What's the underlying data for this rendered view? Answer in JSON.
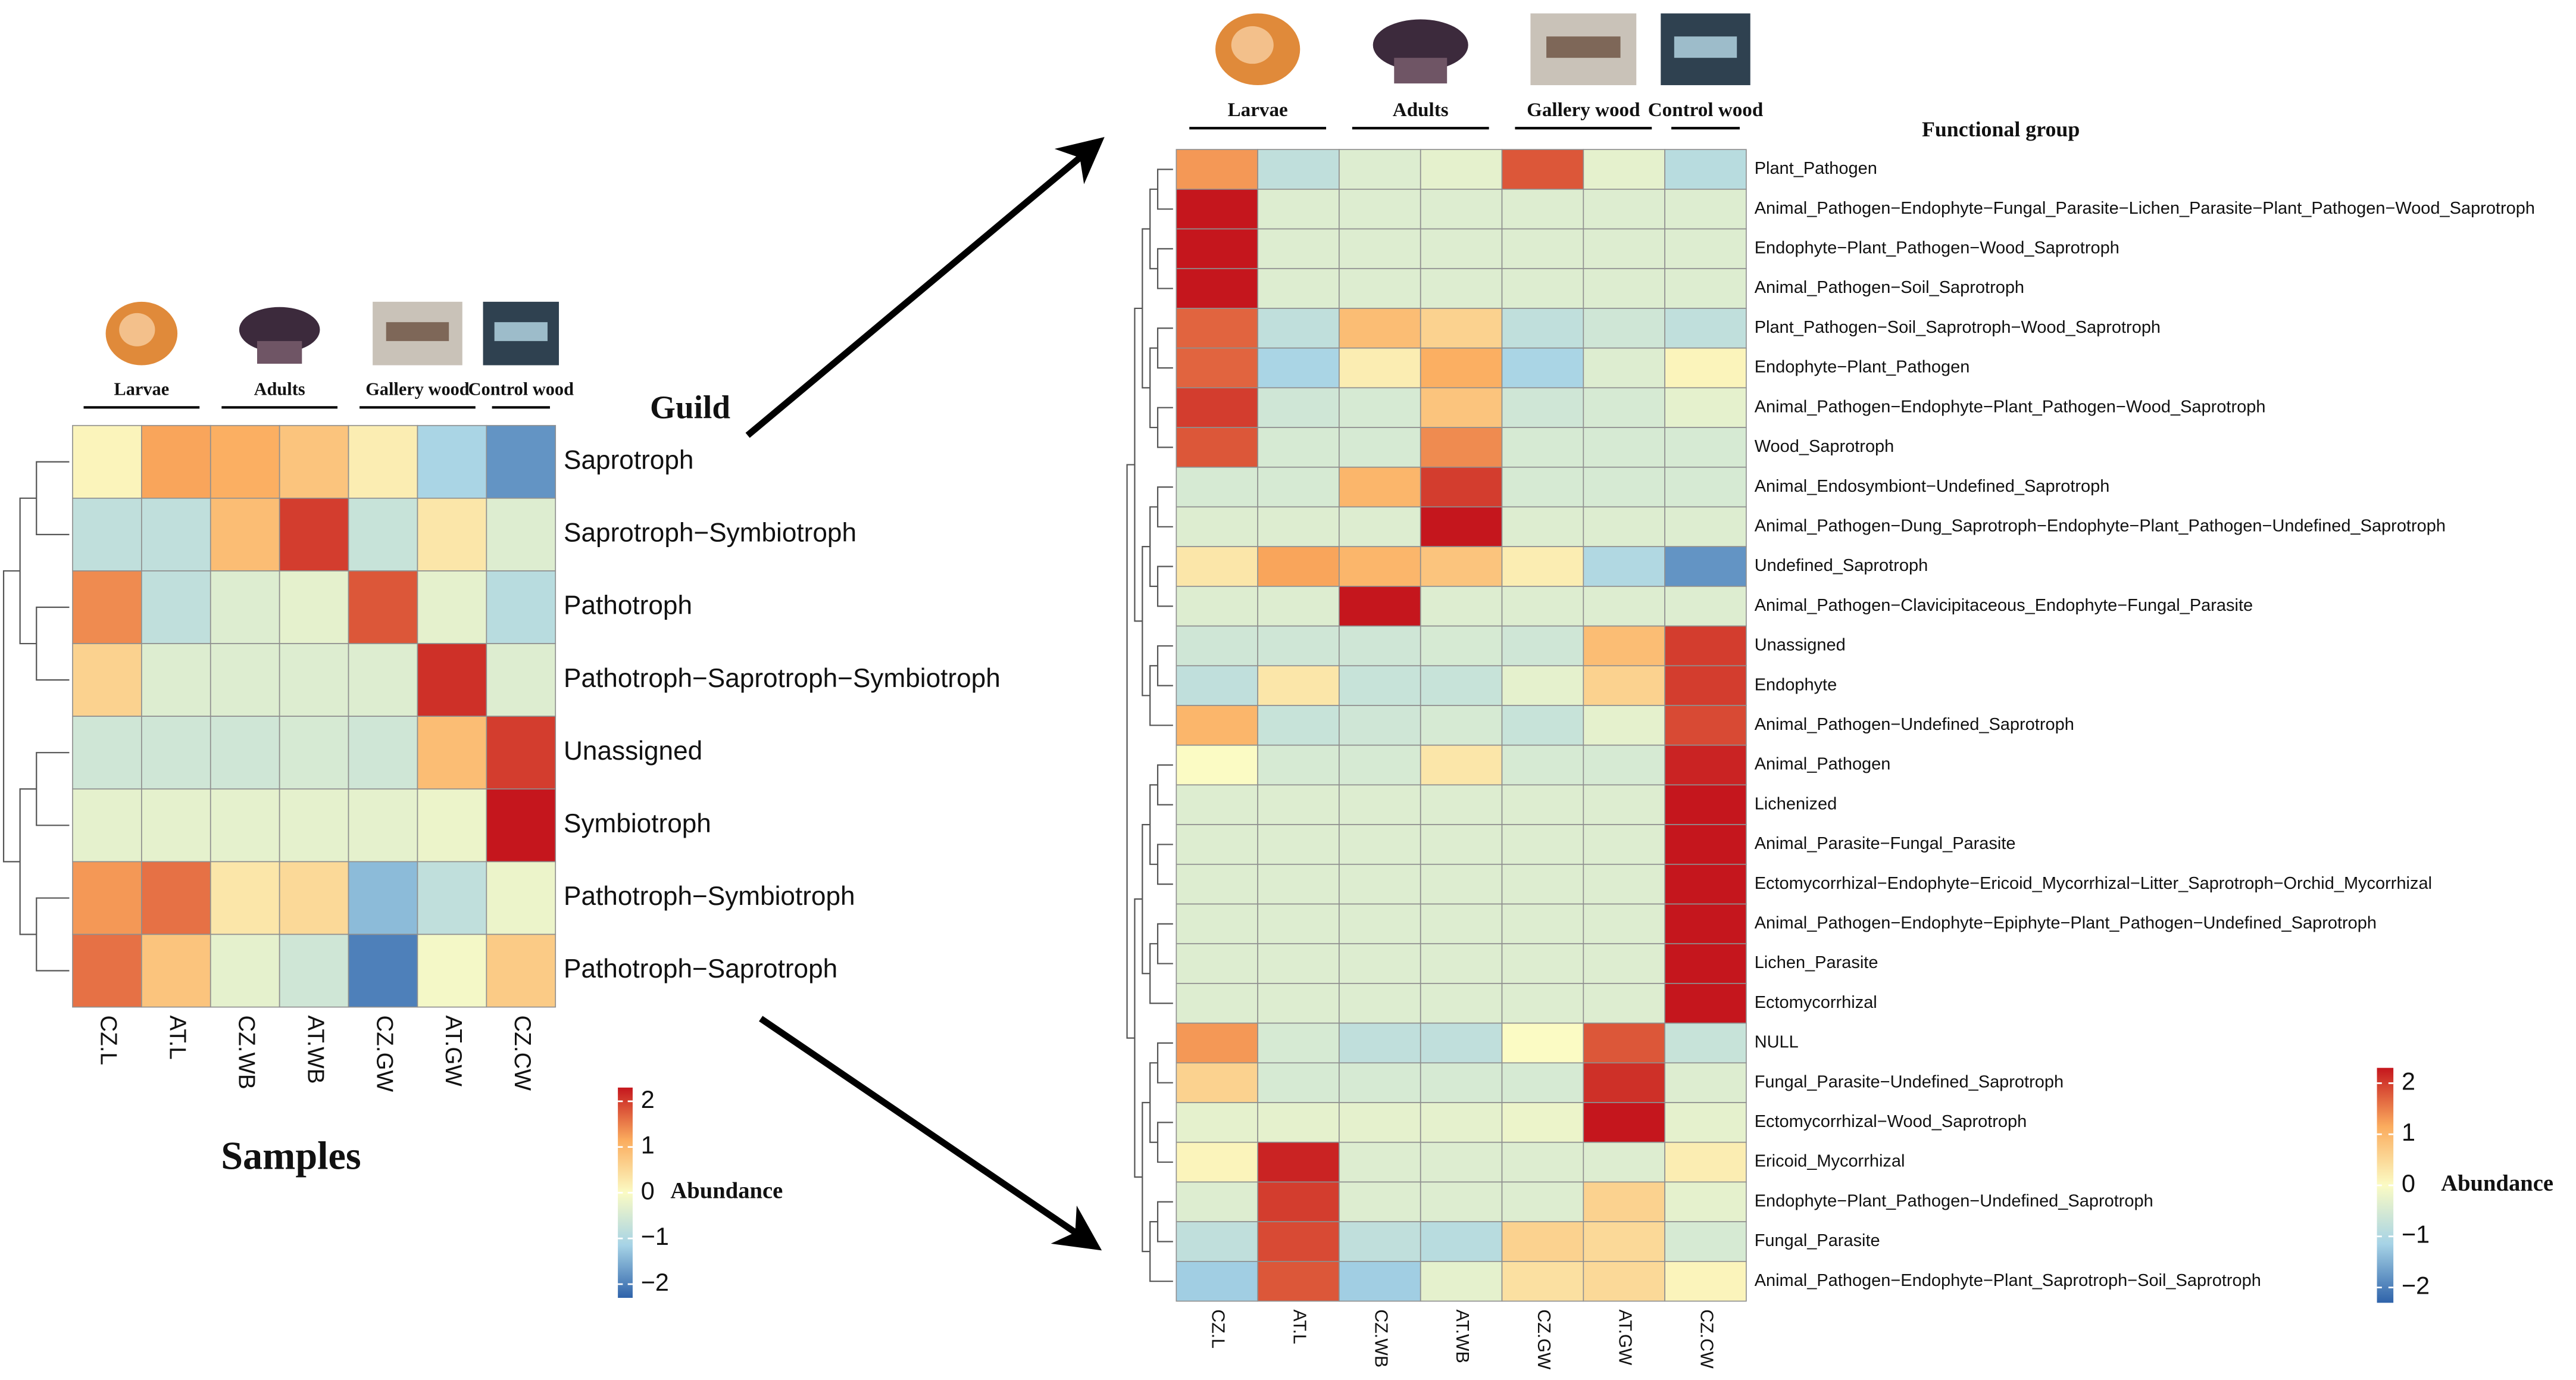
{
  "chart_data": [
    {
      "type": "heatmap",
      "title": "Guild",
      "xlabel": "Samples",
      "groups": [
        "Larvae",
        "Adults",
        "Gallery wood",
        "Control wood"
      ],
      "columns": [
        "CZ.L",
        "AT.L",
        "CZ.WB",
        "AT.WB",
        "CZ.GW",
        "AT.GW",
        "CZ.CW"
      ],
      "rows": [
        "Saprotroph",
        "Saprotroph−Symbiotroph",
        "Pathotroph",
        "Pathotroph−Saprotroph−Symbiotroph",
        "Unassigned",
        "Symbiotroph",
        "Pathotroph−Symbiotroph",
        "Pathotroph−Saprotroph"
      ],
      "values": [
        [
          0.1,
          1.2,
          1.1,
          0.8,
          0.2,
          -1.1,
          -1.8
        ],
        [
          -0.8,
          -0.8,
          0.9,
          2.0,
          -0.7,
          0.3,
          -0.4
        ],
        [
          1.4,
          -0.8,
          -0.4,
          -0.3,
          1.8,
          -0.3,
          -0.9
        ],
        [
          0.6,
          -0.4,
          -0.4,
          -0.4,
          -0.4,
          2.1,
          -0.4
        ],
        [
          -0.6,
          -0.6,
          -0.6,
          -0.5,
          -0.6,
          0.9,
          2.0
        ],
        [
          -0.3,
          -0.3,
          -0.3,
          -0.3,
          -0.3,
          -0.2,
          2.3
        ],
        [
          1.3,
          1.6,
          0.3,
          0.5,
          -1.4,
          -0.8,
          -0.2
        ],
        [
          1.6,
          0.8,
          -0.3,
          -0.6,
          -2.0,
          -0.1,
          0.7
        ]
      ],
      "clim": [
        -2.3,
        2.3
      ],
      "colorscale": [
        "#2f63aa",
        "#a6d3e6",
        "#fbfbc4",
        "#fbac5e",
        "#c5161d"
      ],
      "colorbar_label": "Abundance",
      "colorbar_ticks": [
        {
          "value": -2,
          "label": "−2"
        },
        {
          "value": -1,
          "label": "−1"
        },
        0,
        1,
        2
      ]
    },
    {
      "type": "heatmap",
      "title": "Functional group",
      "groups": [
        "Larvae",
        "Adults",
        "Gallery wood",
        "Control wood"
      ],
      "columns": [
        "CZ.L",
        "AT.L",
        "CZ.WB",
        "AT.WB",
        "CZ.GW",
        "AT.GW",
        "CZ.CW"
      ],
      "rows": [
        "Plant_Pathogen",
        "Animal_Pathogen−Endophyte−Fungal_Parasite−Lichen_Parasite−Plant_Pathogen−Wood_Saprotroph",
        "Endophyte−Plant_Pathogen−Wood_Saprotroph",
        "Animal_Pathogen−Soil_Saprotroph",
        "Plant_Pathogen−Soil_Saprotroph−Wood_Saprotroph",
        "Endophyte−Plant_Pathogen",
        "Animal_Pathogen−Endophyte−Plant_Pathogen−Wood_Saprotroph",
        "Wood_Saprotroph",
        "Animal_Endosymbiont−Undefined_Saprotroph",
        "Animal_Pathogen−Dung_Saprotroph−Endophyte−Plant_Pathogen−Undefined_Saprotroph",
        "Undefined_Saprotroph",
        "Animal_Pathogen−Clavicipitaceous_Endophyte−Fungal_Parasite",
        "Unassigned",
        "Endophyte",
        "Animal_Pathogen−Undefined_Saprotroph",
        "Animal_Pathogen",
        "Lichenized",
        "Animal_Parasite−Fungal_Parasite",
        "Ectomycorrhizal−Endophyte−Ericoid_Mycorrhizal−Litter_Saprotroph−Orchid_Mycorrhizal",
        "Animal_Pathogen−Endophyte−Epiphyte−Plant_Pathogen−Undefined_Saprotroph",
        "Lichen_Parasite",
        "Ectomycorrhizal",
        "NULL",
        "Fungal_Parasite−Undefined_Saprotroph",
        "Ectomycorrhizal−Wood_Saprotroph",
        "Ericoid_Mycorrhizal",
        "Endophyte−Plant_Pathogen−Undefined_Saprotroph",
        "Fungal_Parasite",
        "Animal_Pathogen−Endophyte−Plant_Saprotroph−Soil_Saprotroph"
      ],
      "values": [
        [
          1.3,
          -0.8,
          -0.4,
          -0.3,
          1.8,
          -0.3,
          -0.9
        ],
        [
          2.3,
          -0.4,
          -0.4,
          -0.4,
          -0.4,
          -0.4,
          -0.4
        ],
        [
          2.3,
          -0.4,
          -0.4,
          -0.4,
          -0.4,
          -0.4,
          -0.4
        ],
        [
          2.3,
          -0.4,
          -0.4,
          -0.4,
          -0.4,
          -0.4,
          -0.4
        ],
        [
          1.7,
          -0.8,
          0.9,
          0.6,
          -0.8,
          -0.6,
          -0.8
        ],
        [
          1.7,
          -1.1,
          0.2,
          1.1,
          -1.1,
          -0.4,
          0.1
        ],
        [
          2.0,
          -0.6,
          -0.5,
          0.8,
          -0.6,
          -0.5,
          -0.3
        ],
        [
          1.8,
          -0.5,
          -0.5,
          1.4,
          -0.5,
          -0.5,
          -0.5
        ],
        [
          -0.5,
          -0.5,
          1.0,
          2.0,
          -0.5,
          -0.5,
          -0.5
        ],
        [
          -0.4,
          -0.4,
          -0.4,
          2.3,
          -0.4,
          -0.4,
          -0.4
        ],
        [
          0.3,
          1.2,
          1.0,
          0.8,
          0.2,
          -1.0,
          -1.8
        ],
        [
          -0.4,
          -0.4,
          2.3,
          -0.4,
          -0.4,
          -0.4,
          -0.4
        ],
        [
          -0.6,
          -0.6,
          -0.6,
          -0.5,
          -0.6,
          0.9,
          2.0
        ],
        [
          -0.8,
          0.3,
          -0.7,
          -0.7,
          -0.3,
          0.6,
          2.0
        ],
        [
          1.0,
          -0.7,
          -0.6,
          -0.5,
          -0.7,
          -0.3,
          1.9
        ],
        [
          0.0,
          -0.5,
          -0.5,
          0.3,
          -0.5,
          -0.5,
          2.2
        ],
        [
          -0.4,
          -0.4,
          -0.4,
          -0.4,
          -0.4,
          -0.4,
          2.3
        ],
        [
          -0.4,
          -0.4,
          -0.4,
          -0.4,
          -0.4,
          -0.4,
          2.3
        ],
        [
          -0.4,
          -0.4,
          -0.4,
          -0.4,
          -0.4,
          -0.4,
          2.3
        ],
        [
          -0.4,
          -0.4,
          -0.4,
          -0.4,
          -0.4,
          -0.4,
          2.3
        ],
        [
          -0.4,
          -0.4,
          -0.4,
          -0.4,
          -0.4,
          -0.4,
          2.3
        ],
        [
          -0.4,
          -0.4,
          -0.4,
          -0.4,
          -0.4,
          -0.4,
          2.3
        ],
        [
          1.3,
          -0.5,
          -0.8,
          -0.8,
          0.0,
          1.8,
          -0.7
        ],
        [
          0.6,
          -0.5,
          -0.5,
          -0.5,
          -0.5,
          2.1,
          -0.4
        ],
        [
          -0.3,
          -0.3,
          -0.3,
          -0.3,
          -0.2,
          2.3,
          -0.3
        ],
        [
          0.1,
          2.2,
          -0.4,
          -0.4,
          -0.4,
          -0.4,
          0.2
        ],
        [
          -0.4,
          2.0,
          -0.4,
          -0.4,
          -0.4,
          0.6,
          -0.3
        ],
        [
          -0.8,
          1.9,
          -0.8,
          -0.9,
          0.6,
          0.5,
          -0.5
        ],
        [
          -1.2,
          1.8,
          -1.2,
          -0.3,
          0.4,
          0.5,
          0.1
        ]
      ],
      "clim": [
        -2.3,
        2.3
      ],
      "colorscale": [
        "#2f63aa",
        "#a6d3e6",
        "#fbfbc4",
        "#fbac5e",
        "#c5161d"
      ],
      "colorbar_label": "Abundance",
      "colorbar_ticks": [
        {
          "value": -2,
          "label": "−2"
        },
        {
          "value": -1,
          "label": "−1"
        },
        0,
        1,
        2
      ]
    }
  ]
}
